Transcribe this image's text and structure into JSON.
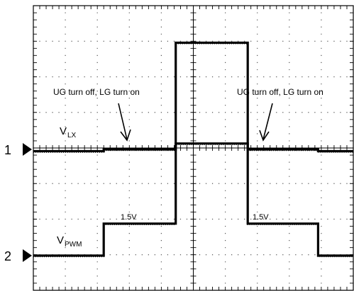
{
  "chart_data": {
    "type": "line",
    "grid": true,
    "grid_divisions": {
      "x": 10,
      "y": 8
    },
    "channels": [
      {
        "marker": "1",
        "label_main": "V",
        "label_sub": "LX"
      },
      {
        "marker": "2",
        "label_main": "V",
        "label_sub": "PWM"
      }
    ],
    "series": [
      {
        "x": [
          0,
          2.2,
          2.2,
          4.45,
          4.45,
          6.7,
          6.7,
          8.9,
          8.9,
          10
        ],
        "y": [
          -0.05,
          -0.05,
          0.0,
          0.0,
          3.0,
          3.0,
          0.0,
          0.0,
          -0.05,
          -0.05
        ]
      },
      {
        "x": [
          0,
          2.2,
          2.2,
          4.45,
          4.45,
          6.7,
          6.7,
          8.9,
          8.9,
          10
        ],
        "y": [
          0,
          0,
          0.9,
          0.9,
          3.15,
          3.15,
          0.9,
          0.9,
          0,
          0
        ]
      }
    ],
    "annotations": [
      {
        "text": "UG turn off, LG turn on",
        "arrow_to": {
          "x": 3.2,
          "y": 0.1
        }
      },
      {
        "text": "UG turn off, LG turn on",
        "arrow_to": {
          "x": 7.9,
          "y": 0.1
        }
      },
      {
        "text": "1.5V"
      },
      {
        "text": "1.5V"
      }
    ]
  }
}
